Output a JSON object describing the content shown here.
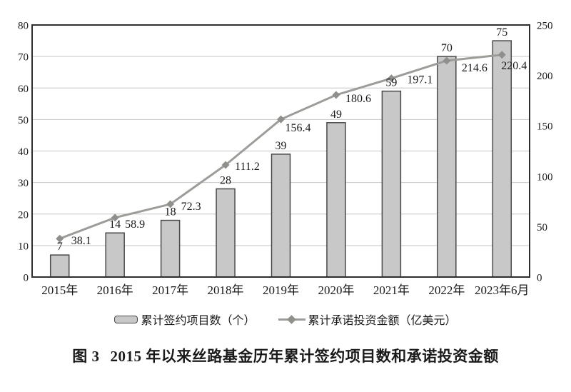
{
  "figure": {
    "caption_prefix": "图 3",
    "caption_title": "2015 年以来丝路基金历年累计签约项目数和承诺投资金额"
  },
  "chart_data": {
    "type": "bar+line combo",
    "title": "图 3 2015 年以来丝路基金历年累计签约项目数和承诺投资金额",
    "categories": [
      "2015年",
      "2016年",
      "2017年",
      "2018年",
      "2019年",
      "2020年",
      "2021年",
      "2022年",
      "2023年6月"
    ],
    "series": [
      {
        "name": "累计签约项目数（个）",
        "type": "bar",
        "axis": "left",
        "values": [
          7,
          14,
          18,
          28,
          39,
          49,
          59,
          70,
          75
        ]
      },
      {
        "name": "累计承诺投资金额（亿美元）",
        "type": "line",
        "axis": "right",
        "values": [
          38.1,
          58.9,
          72.3,
          111.2,
          156.4,
          180.6,
          197.1,
          214.6,
          220.4
        ]
      }
    ],
    "left_axis": {
      "min": 0,
      "max": 80,
      "tick_step": 10,
      "ticks": [
        0,
        10,
        20,
        30,
        40,
        50,
        60,
        70,
        80
      ]
    },
    "right_axis": {
      "min": 0,
      "max": 250,
      "tick_step": 50,
      "ticks": [
        0,
        50,
        100,
        150,
        200,
        250
      ]
    },
    "grid": "horizontal gridlines every 10 units of left axis",
    "legend_position": "bottom-center",
    "colors": {
      "background": "#ffffff",
      "text": "#1a1a1a",
      "bar_fill": "#c8c8c8",
      "bar_border": "#4a4a4a",
      "line": "#9c9c99",
      "marker": "#8f8f8c",
      "gridline": "#c6c6c6",
      "axis_border": "#2e2e2e"
    }
  },
  "legend": {
    "items": [
      {
        "label": "累计签约项目数（个）",
        "swatch": "bar"
      },
      {
        "label": "累计承诺投资金额（亿美元）",
        "swatch": "line-diamond"
      }
    ]
  }
}
